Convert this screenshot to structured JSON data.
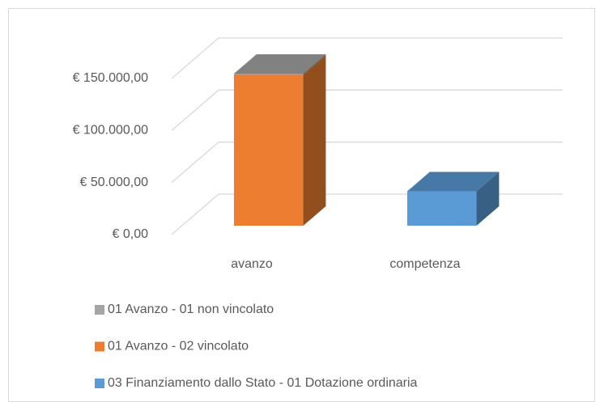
{
  "chart_data": {
    "type": "bar3d_stacked",
    "categories": [
      "avanzo",
      "competenza"
    ],
    "series": [
      {
        "name": "01 Avanzo - 01 non vincolato",
        "color": "#a5a5a5",
        "values": [
          1000,
          0
        ]
      },
      {
        "name": "01 Avanzo - 02 vincolato",
        "color": "#ed7d31",
        "values": [
          145000,
          0
        ]
      },
      {
        "name": "03 Finanziamento dallo Stato - 01 Dotazione ordinaria",
        "color": "#5b9bd5",
        "values": [
          0,
          33000
        ]
      }
    ],
    "ylim": [
      0,
      150000
    ],
    "yticks": [
      {
        "value": 0,
        "label": "€ 0,00"
      },
      {
        "value": 50000,
        "label": "€ 50.000,00"
      },
      {
        "value": 100000,
        "label": "€ 100.000,00"
      },
      {
        "value": 150000,
        "label": "€ 150.000,00"
      }
    ],
    "grid": true
  }
}
